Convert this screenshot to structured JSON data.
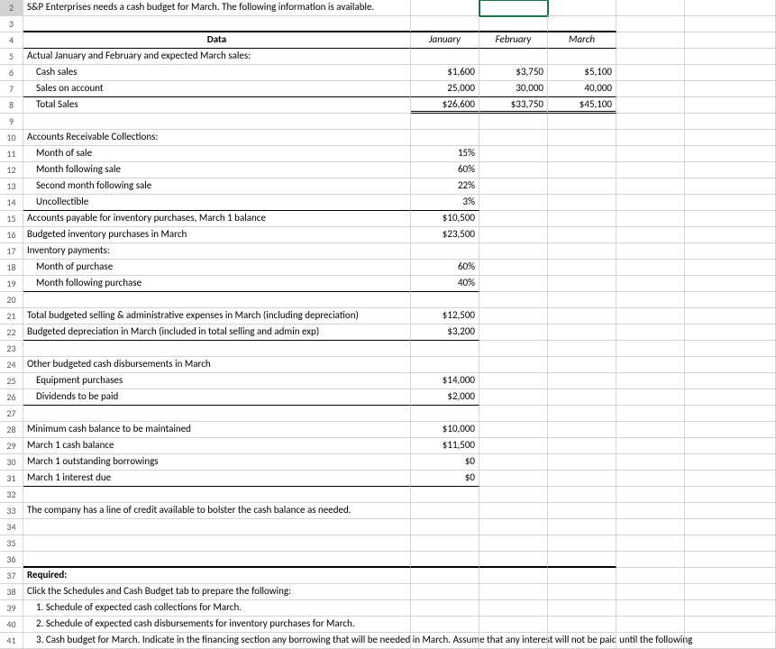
{
  "rows": {
    "2": "S&P Enterprises needs a cash budget for March. The following information is available.",
    "4": {
      "b": "Data",
      "c": "January",
      "d": "February",
      "e": "March"
    },
    "5": "Actual January and February and expected March sales:",
    "6": {
      "b": "Cash sales",
      "c": "$1,600",
      "d": "$3,750",
      "e": "$5,100"
    },
    "7": {
      "b": "Sales on account",
      "c": "25,000",
      "d": "30,000",
      "e": "40,000"
    },
    "8": {
      "b": "Total Sales",
      "c": "$26,600",
      "d": "$33,750",
      "e": "$45,100"
    },
    "10": "Accounts Receivable Collections:",
    "11": {
      "b": "Month of sale",
      "c": "15%"
    },
    "12": {
      "b": "Month following sale",
      "c": "60%"
    },
    "13": {
      "b": "Second month following sale",
      "c": "22%"
    },
    "14": {
      "b": "Uncollectible",
      "c": "3%"
    },
    "15": {
      "b": "Accounts payable for inventory purchases, March 1 balance",
      "c": "$10,500"
    },
    "16": {
      "b": "Budgeted inventory purchases in March",
      "c": "$23,500"
    },
    "17": "Inventory payments:",
    "18": {
      "b": "Month of purchase",
      "c": "60%"
    },
    "19": {
      "b": "Month following purchase",
      "c": "40%"
    },
    "21": {
      "b": "Total budgeted selling & administrative expenses in March (including depreciation)",
      "c": "$12,500"
    },
    "22": {
      "b": "Budgeted depreciation in March (included in total selling and admin exp)",
      "c": "$3,200"
    },
    "24": "Other budgeted cash disbursements in March",
    "25": {
      "b": "Equipment purchases",
      "c": "$14,000"
    },
    "26": {
      "b": "Dividends to be paid",
      "c": "$2,000"
    },
    "28": {
      "b": "Minimum cash balance to be maintained",
      "c": "$10,000"
    },
    "29": {
      "b": "March 1 cash balance",
      "c": "$11,500"
    },
    "30": {
      "b": "March 1 outstanding borrowings",
      "c": "$0"
    },
    "31": {
      "b": "March 1 interest due",
      "c": "$0"
    },
    "33": "The company has a line of credit available to bolster the cash balance as needed.",
    "37": "Required:",
    "38": "Click the Schedules and Cash Budget tab to prepare the following:",
    "39": "1. Schedule of expected cash collections for March.",
    "40": "2. Schedule of expected cash disbursements for inventory purchases for March.",
    "41": "3. Cash budget for March. Indicate in the financing section any borrowing that will be needed in March. Assume that any interest will not be paid until the following"
  },
  "colors": {
    "selected_row_bg": "#d2d2d2",
    "grid_border": "#d4d4d4",
    "active_outline": "#217346"
  }
}
